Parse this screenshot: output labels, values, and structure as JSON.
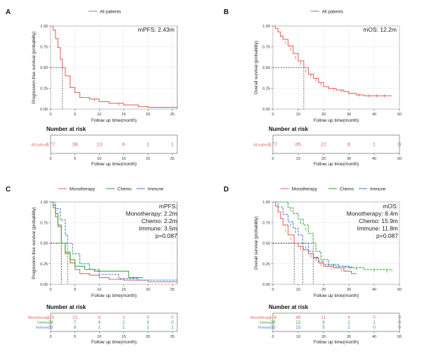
{
  "colors": {
    "red": "#e8675f",
    "green": "#3aaa35",
    "blue": "#4d7fd6",
    "axis": "#222222",
    "grid": "#e6e6e6",
    "dash": "#333333"
  },
  "chart_data": [
    {
      "panel_label": "A",
      "type": "line",
      "legend": [
        "All patients"
      ],
      "ylabel": "Progression-free survival (probability)",
      "xlabel": "Follow up time(month)",
      "xlim": [
        0,
        26
      ],
      "xticks": [
        0,
        5,
        10,
        15,
        20,
        25
      ],
      "ylim": [
        0,
        1
      ],
      "yticks": [
        "0.00",
        "0.25",
        "0.50",
        "0.75",
        "1.00"
      ],
      "annotation": [
        "mPFS: 2.43m"
      ],
      "medians": [
        {
          "x": 2.43,
          "series": 0
        }
      ],
      "series": [
        {
          "name": "All patients",
          "color": "red",
          "points": [
            [
              0,
              1
            ],
            [
              0.5,
              0.95
            ],
            [
              1,
              0.85
            ],
            [
              1.5,
              0.74
            ],
            [
              2,
              0.6
            ],
            [
              2.43,
              0.5
            ],
            [
              3,
              0.4
            ],
            [
              4,
              0.26
            ],
            [
              5,
              0.2
            ],
            [
              6,
              0.14
            ],
            [
              8,
              0.12
            ],
            [
              10,
              0.09
            ],
            [
              12,
              0.07
            ],
            [
              15,
              0.05
            ],
            [
              18,
              0.03
            ],
            [
              20,
              0.02
            ],
            [
              26,
              0.02
            ]
          ],
          "censors": [
            [
              9,
              0.11
            ],
            [
              14,
              0.06
            ]
          ]
        }
      ],
      "risk": {
        "title": "Number at risk",
        "xticks": [
          0,
          5,
          10,
          15,
          20,
          25
        ],
        "rows": [
          {
            "label": "All patients",
            "color": "red",
            "values": [
              "177",
              "36",
              "13",
              "6",
              "1",
              "1"
            ]
          }
        ]
      }
    },
    {
      "panel_label": "B",
      "type": "line",
      "legend": [
        "All patients"
      ],
      "ylabel": "Overall survival (probability)",
      "xlabel": "Follow up time(month)",
      "xlim": [
        0,
        50
      ],
      "xticks": [
        0,
        10,
        20,
        30,
        40,
        50
      ],
      "ylim": [
        0,
        1
      ],
      "yticks": [
        "0.00",
        "0.25",
        "0.50",
        "0.75",
        "1.00"
      ],
      "annotation": [
        "mOS: 12.2m"
      ],
      "medians": [
        {
          "x": 12.2,
          "series": 0
        }
      ],
      "series": [
        {
          "name": "All patients",
          "color": "red",
          "points": [
            [
              0,
              1
            ],
            [
              1,
              0.97
            ],
            [
              2,
              0.93
            ],
            [
              3,
              0.88
            ],
            [
              4,
              0.84
            ],
            [
              6,
              0.76
            ],
            [
              8,
              0.67
            ],
            [
              10,
              0.58
            ],
            [
              12.2,
              0.5
            ],
            [
              14,
              0.42
            ],
            [
              16,
              0.37
            ],
            [
              18,
              0.32
            ],
            [
              20,
              0.27
            ],
            [
              22,
              0.25
            ],
            [
              25,
              0.23
            ],
            [
              28,
              0.21
            ],
            [
              30,
              0.19
            ],
            [
              33,
              0.17
            ],
            [
              36,
              0.16
            ],
            [
              47,
              0.16
            ]
          ],
          "censors": [
            [
              3,
              0.88
            ],
            [
              5,
              0.8
            ],
            [
              7,
              0.72
            ],
            [
              9,
              0.62
            ],
            [
              11,
              0.55
            ],
            [
              13,
              0.46
            ],
            [
              15,
              0.4
            ],
            [
              17,
              0.35
            ],
            [
              19,
              0.3
            ],
            [
              22,
              0.25
            ],
            [
              24,
              0.24
            ],
            [
              27,
              0.22
            ],
            [
              30,
              0.19
            ],
            [
              34,
              0.17
            ],
            [
              38,
              0.16
            ],
            [
              41,
              0.16
            ],
            [
              44,
              0.16
            ]
          ]
        }
      ],
      "risk": {
        "title": "Number at risk",
        "xticks": [
          0,
          10,
          20,
          30,
          40,
          50
        ],
        "rows": [
          {
            "label": "All patients",
            "color": "red",
            "values": [
              "177",
              "85",
              "22",
              "8",
              "1",
              "0"
            ]
          }
        ]
      }
    },
    {
      "panel_label": "C",
      "type": "line",
      "legend": [
        "Monotherapy",
        "Chemo",
        "Immune"
      ],
      "ylabel": "Progression-free survival (probability)",
      "xlabel": "Follow up time(month)",
      "xlim": [
        0,
        26
      ],
      "xticks": [
        0,
        5,
        10,
        15,
        20,
        25
      ],
      "ylim": [
        0,
        1
      ],
      "yticks": [
        "0.00",
        "0.25",
        "0.50",
        "0.75",
        "1.00"
      ],
      "annotation": [
        "mPFS:",
        "Monotherapy: 2.2m",
        "Chemo: 2.2m",
        "Immune: 3.5m",
        "p=0.087"
      ],
      "medians": [
        {
          "x": 2.2,
          "series": 0
        },
        {
          "x": 2.2,
          "series": 1
        },
        {
          "x": 3.5,
          "series": 2
        }
      ],
      "series": [
        {
          "name": "Monotherapy",
          "color": "red",
          "points": [
            [
              0,
              1
            ],
            [
              0.5,
              0.93
            ],
            [
              1,
              0.82
            ],
            [
              1.5,
              0.7
            ],
            [
              2.2,
              0.5
            ],
            [
              3,
              0.37
            ],
            [
              4,
              0.26
            ],
            [
              5,
              0.18
            ],
            [
              6,
              0.13
            ],
            [
              8,
              0.11
            ],
            [
              10,
              0.08
            ],
            [
              12,
              0.06
            ],
            [
              15,
              0.05
            ],
            [
              20,
              0.03
            ],
            [
              26,
              0.03
            ]
          ],
          "censors": []
        },
        {
          "name": "Chemo",
          "color": "green",
          "points": [
            [
              0,
              1
            ],
            [
              0.5,
              0.96
            ],
            [
              1,
              0.86
            ],
            [
              1.5,
              0.72
            ],
            [
              2.2,
              0.5
            ],
            [
              3,
              0.39
            ],
            [
              4,
              0.3
            ],
            [
              5,
              0.22
            ],
            [
              7,
              0.18
            ],
            [
              9,
              0.16
            ],
            [
              12,
              0.16
            ],
            [
              16,
              0.08
            ],
            [
              19,
              0.08
            ]
          ],
          "censors": [
            [
              10,
              0.16
            ],
            [
              17,
              0.08
            ]
          ]
        },
        {
          "name": "Immune",
          "color": "blue",
          "dashed": true,
          "points": [
            [
              0,
              1
            ],
            [
              1,
              0.92
            ],
            [
              2,
              0.78
            ],
            [
              3,
              0.6
            ],
            [
              3.5,
              0.5
            ],
            [
              4.5,
              0.37
            ],
            [
              6,
              0.25
            ],
            [
              8,
              0.18
            ],
            [
              10,
              0.12
            ],
            [
              14,
              0.07
            ],
            [
              18,
              0.05
            ],
            [
              26,
              0.05
            ]
          ],
          "censors": []
        }
      ],
      "risk": {
        "title": "Number at risk",
        "xticks": [
          0,
          5,
          10,
          15,
          20,
          25
        ],
        "rows": [
          {
            "label": "Monotherapy",
            "color": "red",
            "values": [
              "116",
              "21",
              "8",
              "3",
              "0",
              "0"
            ]
          },
          {
            "label": "Chemo",
            "color": "green",
            "values": [
              "28",
              "7",
              "4",
              "2",
              "0",
              "0"
            ]
          },
          {
            "label": "Immune",
            "color": "blue",
            "values": [
              "33",
              "8",
              "1",
              "1",
              "1",
              "1"
            ]
          }
        ]
      }
    },
    {
      "panel_label": "D",
      "type": "line",
      "legend": [
        "Monotherapy",
        "Chemo",
        "Immune"
      ],
      "ylabel": "Overall survival (probability)",
      "xlabel": "Follow up time(month)",
      "xlim": [
        0,
        50
      ],
      "xticks": [
        0,
        10,
        20,
        30,
        40,
        50
      ],
      "ylim": [
        0,
        1
      ],
      "yticks": [
        "0.00",
        "0.25",
        "0.50",
        "0.75",
        "1.00"
      ],
      "annotation": [
        "mOS:",
        "Monotherapy: 8.4m",
        "Chemo: 15.9m",
        "Immune: 11.8m",
        "p=0.087"
      ],
      "medians": [
        {
          "x": 8.4,
          "series": 0
        },
        {
          "x": 15.9,
          "series": 1
        },
        {
          "x": 11.8,
          "series": 2
        }
      ],
      "series": [
        {
          "name": "Monotherapy",
          "color": "red",
          "points": [
            [
              0,
              1
            ],
            [
              1,
              0.95
            ],
            [
              2,
              0.88
            ],
            [
              3,
              0.8
            ],
            [
              4,
              0.72
            ],
            [
              6,
              0.6
            ],
            [
              8.4,
              0.5
            ],
            [
              10,
              0.46
            ],
            [
              12,
              0.42
            ],
            [
              14,
              0.37
            ],
            [
              16,
              0.32
            ],
            [
              18,
              0.26
            ],
            [
              20,
              0.22
            ],
            [
              24,
              0.2
            ],
            [
              28,
              0.16
            ],
            [
              31,
              0.13
            ],
            [
              33,
              0.13
            ]
          ],
          "censors": [
            [
              5,
              0.65
            ],
            [
              7,
              0.55
            ],
            [
              11,
              0.44
            ],
            [
              15,
              0.34
            ],
            [
              19,
              0.24
            ],
            [
              23,
              0.2
            ],
            [
              27,
              0.17
            ]
          ]
        },
        {
          "name": "Chemo",
          "color": "green",
          "dashed": true,
          "points": [
            [
              0,
              1
            ],
            [
              4,
              1
            ],
            [
              6,
              0.93
            ],
            [
              8,
              0.86
            ],
            [
              10,
              0.79
            ],
            [
              12,
              0.72
            ],
            [
              14,
              0.62
            ],
            [
              15.9,
              0.5
            ],
            [
              17,
              0.4
            ],
            [
              19,
              0.3
            ],
            [
              22,
              0.24
            ],
            [
              26,
              0.22
            ],
            [
              30,
              0.2
            ],
            [
              36,
              0.18
            ],
            [
              47,
              0.16
            ]
          ],
          "censors": [
            [
              7,
              0.9
            ],
            [
              11,
              0.75
            ],
            [
              13,
              0.67
            ],
            [
              24,
              0.23
            ],
            [
              33,
              0.19
            ],
            [
              40,
              0.17
            ],
            [
              45,
              0.16
            ]
          ]
        },
        {
          "name": "Immune",
          "color": "blue",
          "dashed": true,
          "points": [
            [
              0,
              1
            ],
            [
              2,
              0.94
            ],
            [
              4,
              0.85
            ],
            [
              6,
              0.76
            ],
            [
              8,
              0.68
            ],
            [
              10,
              0.6
            ],
            [
              11.8,
              0.5
            ],
            [
              14,
              0.4
            ],
            [
              16,
              0.33
            ],
            [
              18,
              0.28
            ],
            [
              20,
              0.24
            ],
            [
              24,
              0.22
            ],
            [
              28,
              0.21
            ],
            [
              32,
              0.21
            ]
          ],
          "censors": [
            [
              7,
              0.72
            ],
            [
              9,
              0.64
            ],
            [
              13,
              0.45
            ],
            [
              17,
              0.3
            ],
            [
              22,
              0.23
            ],
            [
              26,
              0.21
            ],
            [
              30,
              0.21
            ]
          ]
        }
      ],
      "risk": {
        "title": "Number at risk",
        "xticks": [
          0,
          10,
          20,
          30,
          40,
          50
        ],
        "rows": [
          {
            "label": "Monotherapy",
            "color": "red",
            "values": [
              "116",
              "48",
              "11",
              "4",
              "0",
              "0"
            ]
          },
          {
            "label": "Chemo",
            "color": "green",
            "values": [
              "28",
              "22",
              "6",
              "2",
              "1",
              "0"
            ]
          },
          {
            "label": "Immune",
            "color": "blue",
            "values": [
              "33",
              "15",
              "5",
              "2",
              "0",
              "0"
            ]
          }
        ]
      }
    }
  ]
}
